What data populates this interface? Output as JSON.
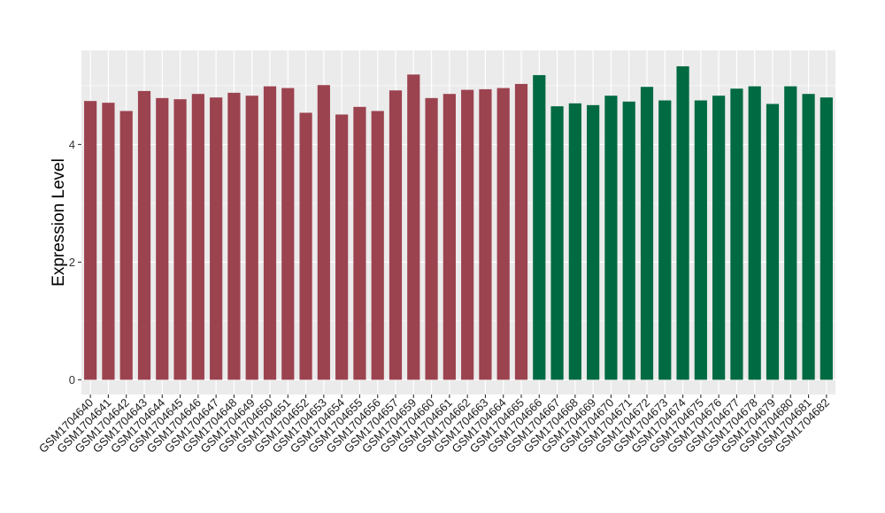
{
  "chart_data": {
    "type": "bar",
    "title": "",
    "xlabel": "",
    "ylabel": "Expression Level",
    "ylim": [
      -0.25,
      5.6
    ],
    "yticks": [
      0,
      2,
      4
    ],
    "grid": true,
    "legend": "none",
    "background_color": "#ebebeb",
    "grid_color": "#ffffff",
    "categories": [
      "GSM1704640",
      "GSM1704641",
      "GSM1704642",
      "GSM1704643",
      "GSM1704644",
      "GSM1704645",
      "GSM1704646",
      "GSM1704647",
      "GSM1704648",
      "GSM1704649",
      "GSM1704650",
      "GSM1704651",
      "GSM1704652",
      "GSM1704653",
      "GSM1704654",
      "GSM1704655",
      "GSM1704656",
      "GSM1704657",
      "GSM1704659",
      "GSM1704660",
      "GSM1704661",
      "GSM1704662",
      "GSM1704663",
      "GSM1704664",
      "GSM1704665",
      "GSM1704666",
      "GSM1704667",
      "GSM1704668",
      "GSM1704669",
      "GSM1704670",
      "GSM1704671",
      "GSM1704672",
      "GSM1704673",
      "GSM1704674",
      "GSM1704675",
      "GSM1704676",
      "GSM1704677",
      "GSM1704678",
      "GSM1704679",
      "GSM1704680",
      "GSM1704681",
      "GSM1704682"
    ],
    "values": [
      4.74,
      4.71,
      4.57,
      4.91,
      4.79,
      4.77,
      4.86,
      4.8,
      4.88,
      4.83,
      4.99,
      4.96,
      4.54,
      5.01,
      4.51,
      4.64,
      4.57,
      4.92,
      5.19,
      4.79,
      4.86,
      4.93,
      4.94,
      4.96,
      5.03,
      5.18,
      4.65,
      4.7,
      4.67,
      4.83,
      4.73,
      4.98,
      4.75,
      5.33,
      4.75,
      4.83,
      4.95,
      4.99,
      4.69,
      4.99,
      4.86,
      4.8
    ],
    "bar_colors": [
      "#9c4350",
      "#9c4350",
      "#9c4350",
      "#9c4350",
      "#9c4350",
      "#9c4350",
      "#9c4350",
      "#9c4350",
      "#9c4350",
      "#9c4350",
      "#9c4350",
      "#9c4350",
      "#9c4350",
      "#9c4350",
      "#9c4350",
      "#9c4350",
      "#9c4350",
      "#9c4350",
      "#9c4350",
      "#9c4350",
      "#9c4350",
      "#9c4350",
      "#9c4350",
      "#9c4350",
      "#9c4350",
      "#006a42",
      "#006a42",
      "#006a42",
      "#006a42",
      "#006a42",
      "#006a42",
      "#006a42",
      "#006a42",
      "#006a42",
      "#006a42",
      "#006a42",
      "#006a42",
      "#006a42",
      "#006a42",
      "#006a42",
      "#006a42",
      "#006a42"
    ]
  }
}
